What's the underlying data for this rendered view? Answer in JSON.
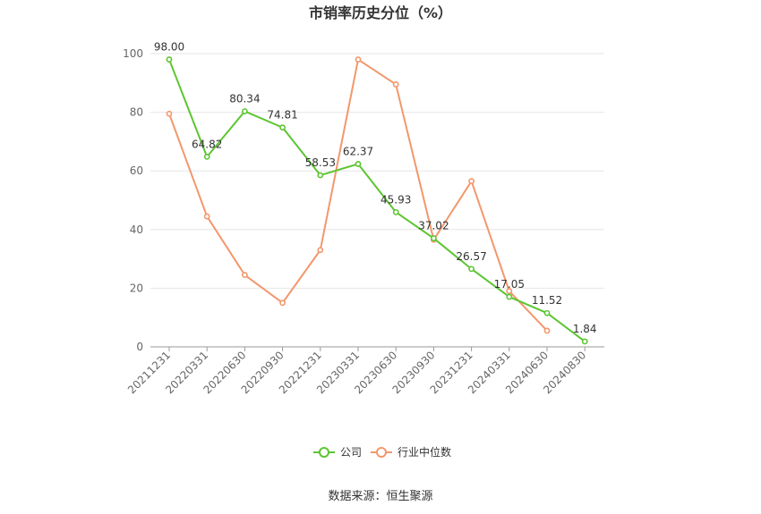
{
  "chart_data": {
    "type": "line",
    "title": "市销率历史分位（%）",
    "categories": [
      "20211231",
      "20220331",
      "20220630",
      "20220930",
      "20221231",
      "20230331",
      "20230630",
      "20230930",
      "20231231",
      "20240331",
      "20240630",
      "20240830"
    ],
    "ylim": [
      0,
      100
    ],
    "yticks": [
      "0",
      "20",
      "40",
      "60",
      "80",
      "100"
    ],
    "grid": true,
    "legend_position": "bottom",
    "series": [
      {
        "name": "公司",
        "color": "#5cc531",
        "values": [
          98.0,
          64.82,
          80.34,
          74.81,
          58.53,
          62.37,
          45.93,
          37.02,
          26.57,
          17.05,
          11.52,
          1.84
        ],
        "labels": [
          "98.00",
          "64.82",
          "80.34",
          "74.81",
          "58.53",
          "62.37",
          "45.93",
          "37.02",
          "26.57",
          "17.05",
          "11.52",
          "1.84"
        ]
      },
      {
        "name": "行业中位数",
        "color": "#f2976c",
        "values": [
          79.5,
          44.5,
          24.5,
          15.0,
          33.0,
          98.0,
          89.5,
          36.5,
          56.5,
          19.0,
          5.5,
          null
        ]
      }
    ],
    "source": "数据来源：恒生聚源"
  }
}
